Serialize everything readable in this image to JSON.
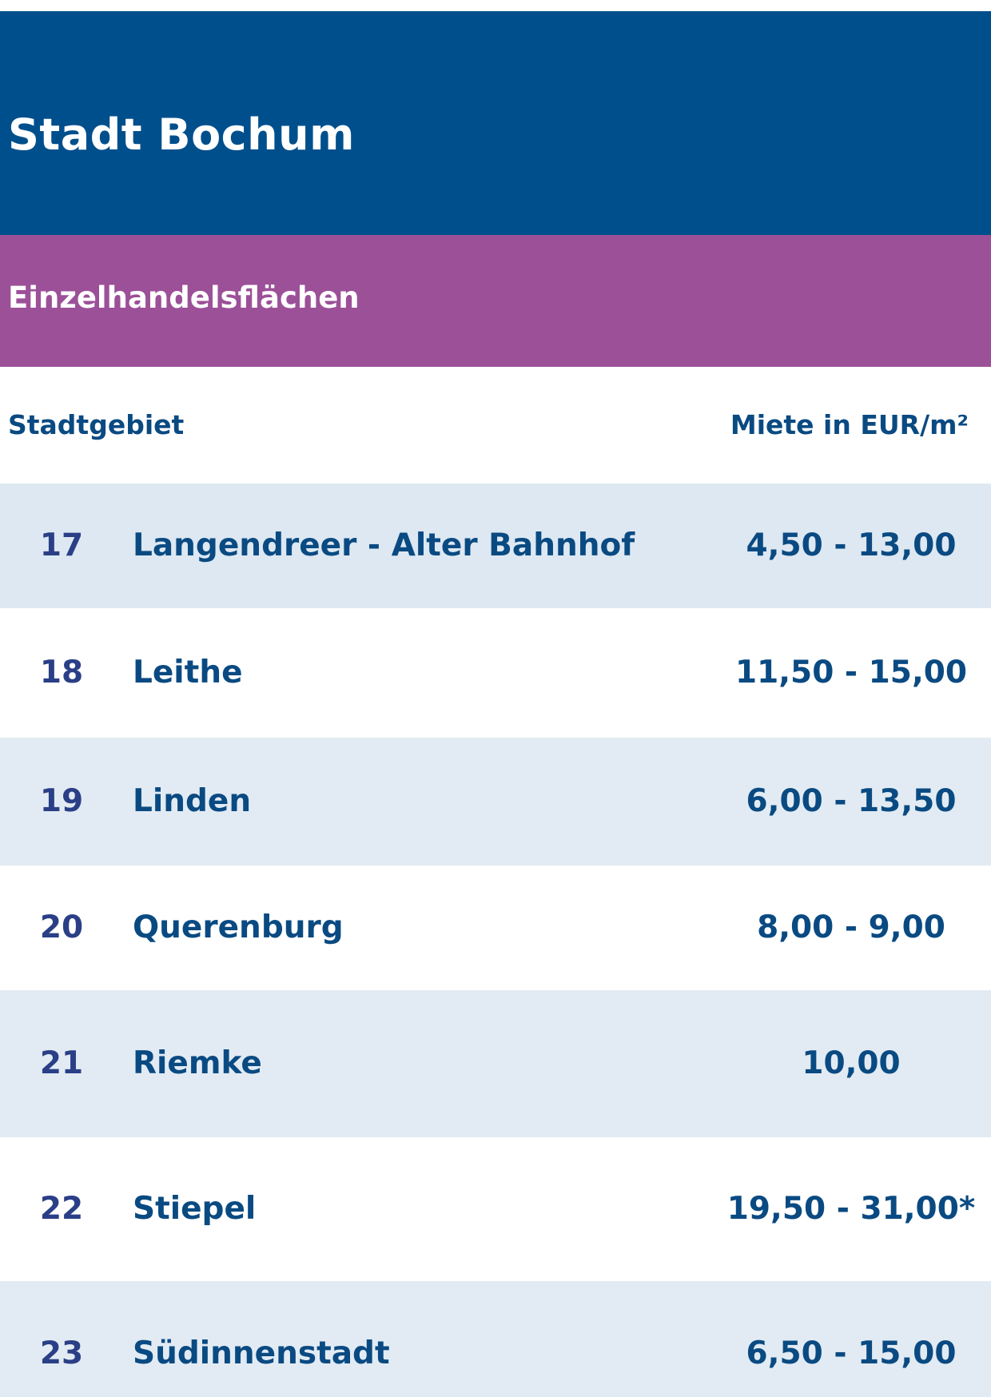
{
  "header": {
    "title": "Stadt Bochum",
    "subtitle": "Einzelhandelsflächen"
  },
  "columns": {
    "district": "Stadtgebiet",
    "rent": "Miete in EUR/m²"
  },
  "rows": [
    {
      "num": "17",
      "name": "Langendreer - Alter Bahnhof",
      "rent": "4,50 - 13,00"
    },
    {
      "num": "18",
      "name": "Leithe",
      "rent": "11,50 - 15,00"
    },
    {
      "num": "19",
      "name": "Linden",
      "rent": "6,00 - 13,50"
    },
    {
      "num": "20",
      "name": "Querenburg",
      "rent": "8,00 - 9,00"
    },
    {
      "num": "21",
      "name": "Riemke",
      "rent": "10,00"
    },
    {
      "num": "22",
      "name": "Stiepel",
      "rent": "19,50 - 31,00*"
    },
    {
      "num": "23",
      "name": "Südinnenstadt",
      "rent": "6,50 - 15,00"
    }
  ],
  "colors": {
    "title_bar": "#004f8d",
    "subtitle_bar": "#9c5098",
    "row_shade": "#e2ebf3",
    "text_blue": "#0a4a82",
    "number_blue": "#2a3f86"
  }
}
